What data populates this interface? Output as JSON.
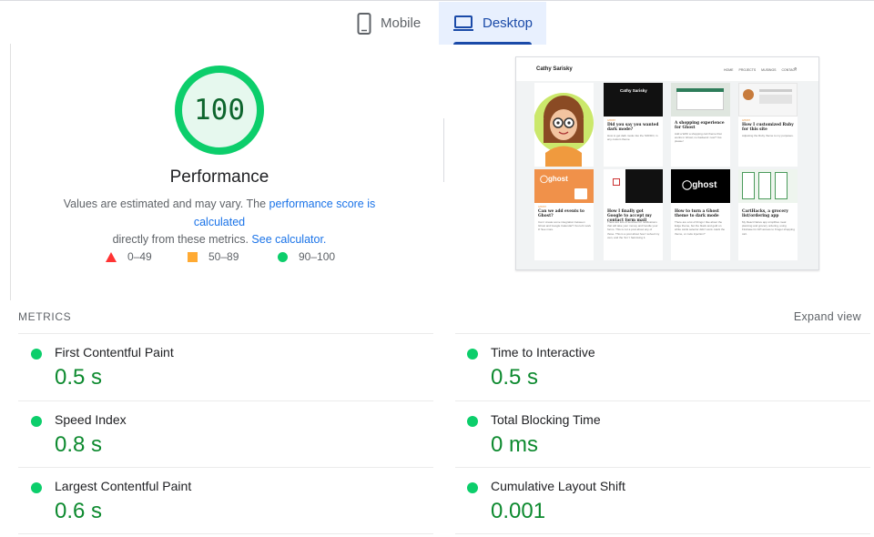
{
  "tabs": [
    {
      "label": "Mobile",
      "icon": "smartphone-icon",
      "selected": false
    },
    {
      "label": "Desktop",
      "icon": "laptop-icon",
      "selected": true
    }
  ],
  "performance": {
    "score": "100",
    "score_fraction": 1.0,
    "title": "Performance",
    "desc_before": "Values are estimated and may vary. The ",
    "desc_link1": "performance score is calculated",
    "desc_middle": " directly from these metrics. ",
    "desc_link2": "See calculator.",
    "colors": {
      "pass": "#0cce6b",
      "pass_text": "#0d652d",
      "average": "#ffaa33",
      "fail": "#ff3333"
    }
  },
  "legend": [
    {
      "range": "0–49",
      "shape": "triangle",
      "color": "#ff3333"
    },
    {
      "range": "50–89",
      "shape": "square",
      "color": "#ffaa33"
    },
    {
      "range": "90–100",
      "shape": "circle",
      "color": "#0cce6b"
    }
  ],
  "screenshot": {
    "site_name": "Cathy Sarisky",
    "nav": [
      "HOME",
      "PROJECTS",
      "MUSINGS",
      "CONTACT"
    ],
    "cards": [
      {
        "category": "GHOST",
        "title": "Did you say you wanted dark mode?",
        "body": "How to get dark mode into the SOFDO, in any custom theme."
      },
      {
        "category": "",
        "title": "A shopping experience for Ghost",
        "body": "Add a WAV a shopping cart theme that works in Ghost; no backend: now? Yes please!"
      },
      {
        "category": "GHOST",
        "title": "How I customized Ruby for this site",
        "body": "Adjusting the Ruby theme to my purposes."
      },
      {
        "category": "GHOST",
        "title": "Can we add events to Ghost?",
        "body": "Can I create some integration between Ghost and Google Calendar? Yes let's work it! See more."
      },
      {
        "category": "",
        "title": "How I finally got Google to accept my contact form mail",
        "body": "There are lots of services for notifications that will take your money and handle your forms. This is not a post about any of those. This is a post about how I solved my own, and the 'fun' I had doing it."
      },
      {
        "category": "",
        "title": "How to turn a Ghost theme to dark mode",
        "body": "There are a lot of things I like about the Edge theme, but the black and gold on white cards selector didn't work. Hack the theme, or code injection?"
      },
      {
        "category": "",
        "title": "CartHacks, a grocery list/ordering app",
        "body": "My React Native app simplifies meal planning and grocery ordering, using Firebase for API access to Kroger shopping cart."
      }
    ]
  },
  "metrics_header": "METRICS",
  "expand_label": "Expand view",
  "metrics": [
    {
      "label": "First Contentful Paint",
      "value": "0.5 s",
      "status": "pass"
    },
    {
      "label": "Time to Interactive",
      "value": "0.5 s",
      "status": "pass"
    },
    {
      "label": "Speed Index",
      "value": "0.8 s",
      "status": "pass"
    },
    {
      "label": "Total Blocking Time",
      "value": "0 ms",
      "status": "pass"
    },
    {
      "label": "Largest Contentful Paint",
      "value": "0.6 s",
      "status": "pass"
    },
    {
      "label": "Cumulative Layout Shift",
      "value": "0.001",
      "status": "pass"
    }
  ]
}
